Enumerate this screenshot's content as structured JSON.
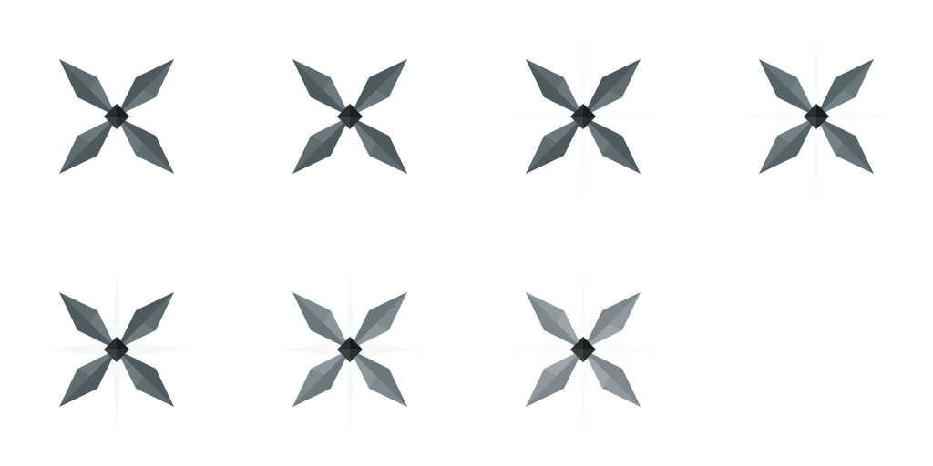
{
  "sprite_sheet": {
    "columns": 4,
    "rows": 2,
    "background": "#ffffff",
    "frames": [
      {
        "icon": "shuriken-icon",
        "blade_color": "#5e6b70",
        "blade_shadow": "#4d595e",
        "blade_light": "#77858a",
        "center_color": "#2b2e30",
        "glint": 0
      },
      {
        "icon": "shuriken-icon",
        "blade_color": "#5e6b70",
        "blade_shadow": "#4d595e",
        "blade_light": "#77858a",
        "center_color": "#2b2e30",
        "glint": 0
      },
      {
        "icon": "shuriken-icon",
        "blade_color": "#5e6b70",
        "blade_shadow": "#4d595e",
        "blade_light": "#77858a",
        "center_color": "#2b2e30",
        "glint": 0.15
      },
      {
        "icon": "shuriken-icon",
        "blade_color": "#67767b",
        "blade_shadow": "#566469",
        "blade_light": "#7e8d92",
        "center_color": "#2b2e30",
        "glint": 0.35
      },
      {
        "icon": "shuriken-icon",
        "blade_color": "#5f6c71",
        "blade_shadow": "#4e5a5f",
        "blade_light": "#78868b",
        "center_color": "#2b2e30",
        "glint": 0.6
      },
      {
        "icon": "shuriken-icon",
        "blade_color": "#7d8a8f",
        "blade_shadow": "#6a777c",
        "blade_light": "#95a2a6",
        "center_color": "#2b2e30",
        "glint": 0.45
      },
      {
        "icon": "shuriken-icon",
        "blade_color": "#8f9aa0",
        "blade_shadow": "#7d878d",
        "blade_light": "#a7b0b4",
        "center_color": "#2b2e30",
        "glint": 0.3
      }
    ]
  }
}
